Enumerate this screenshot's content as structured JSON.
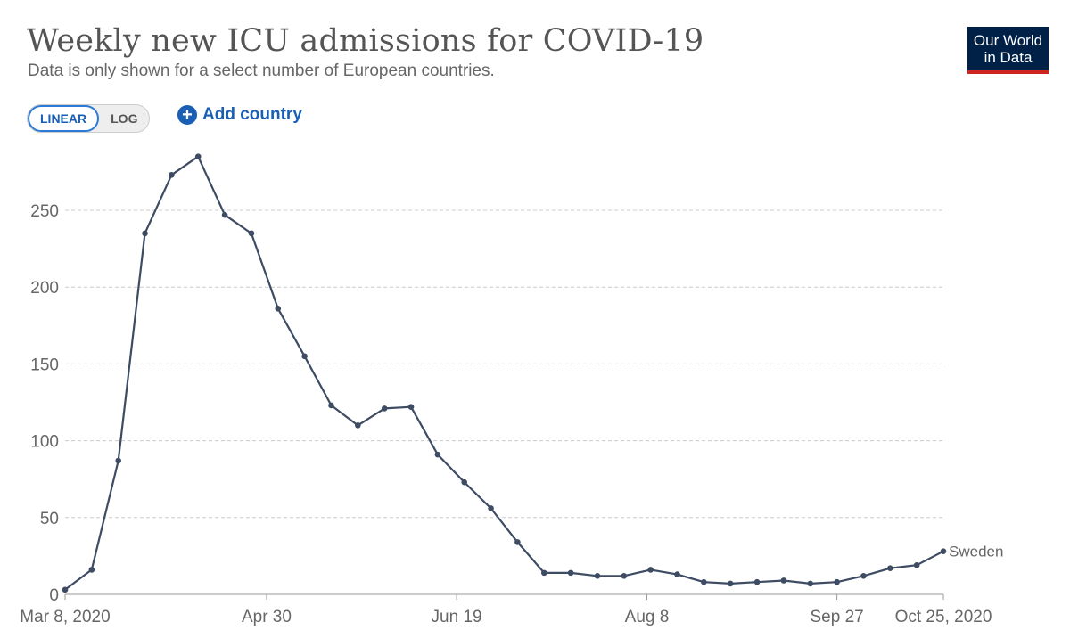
{
  "header": {
    "title": "Weekly new ICU admissions for COVID-19",
    "subtitle": "Data is only shown for a select number of European countries."
  },
  "logo": {
    "line1": "Our World",
    "line2": "in Data"
  },
  "controls": {
    "linear_label": "LINEAR",
    "log_label": "LOG",
    "add_country_label": "Add country",
    "active_scale": "linear"
  },
  "colors": {
    "line": "#3d4b63",
    "grid": "#cccccc",
    "accent": "#1a5fb4",
    "logo_bg": "#002147",
    "logo_bar": "#ce261e"
  },
  "chart_data": {
    "type": "line",
    "title": "Weekly new ICU admissions for COVID-19",
    "xlabel": "",
    "ylabel": "",
    "ylim": [
      0,
      285
    ],
    "y_ticks": [
      0,
      50,
      100,
      150,
      200,
      250
    ],
    "x_tick_labels": [
      {
        "label": "Mar 8, 2020",
        "index": 0
      },
      {
        "label": "Apr 30",
        "index": 7.57
      },
      {
        "label": "Jun 19",
        "index": 14.71
      },
      {
        "label": "Aug 8",
        "index": 21.86
      },
      {
        "label": "Sep 27",
        "index": 29.0
      },
      {
        "label": "Oct 25, 2020",
        "index": 33.0
      }
    ],
    "grid": true,
    "series": [
      {
        "name": "Sweden",
        "values": [
          3,
          16,
          87,
          235,
          273,
          285,
          247,
          235,
          186,
          155,
          123,
          110,
          121,
          122,
          91,
          73,
          56,
          34,
          14,
          14,
          12,
          12,
          16,
          13,
          8,
          7,
          8,
          9,
          7,
          8,
          12,
          17,
          19,
          28
        ]
      }
    ]
  }
}
